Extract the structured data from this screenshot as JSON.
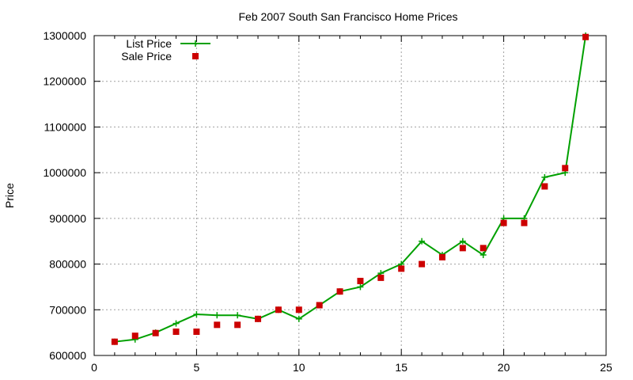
{
  "chart_data": {
    "type": "line",
    "title": "Feb 2007 South San Francisco Home Prices",
    "xlabel": "",
    "ylabel": "Price",
    "xlim": [
      0,
      25
    ],
    "ylim": [
      600000,
      1300000
    ],
    "xticks": [
      0,
      5,
      10,
      15,
      20,
      25
    ],
    "yticks": [
      600000,
      700000,
      800000,
      900000,
      1000000,
      1100000,
      1200000,
      1300000
    ],
    "xtick_labels": [
      "0",
      "5",
      "10",
      "15",
      "20",
      "25"
    ],
    "ytick_labels": [
      "600000",
      "700000",
      "800000",
      "900000",
      "1000000",
      "1100000",
      "1200000",
      "1300000"
    ],
    "grid": true,
    "legend_position": "top-left",
    "series": [
      {
        "name": "List Price",
        "style": "line-plus",
        "color": "#00a000",
        "x": [
          1,
          2,
          3,
          4,
          5,
          6,
          7,
          8,
          9,
          10,
          11,
          12,
          13,
          14,
          15,
          16,
          17,
          18,
          19,
          20,
          21,
          22,
          23,
          24
        ],
        "y": [
          630000,
          635000,
          650000,
          670000,
          690000,
          688000,
          688000,
          680000,
          700000,
          680000,
          710000,
          740000,
          750000,
          780000,
          800000,
          850000,
          820000,
          850000,
          820000,
          900000,
          900000,
          990000,
          1000000,
          1300000
        ]
      },
      {
        "name": "Sale Price",
        "style": "square",
        "color": "#cc0000",
        "x": [
          1,
          2,
          3,
          4,
          5,
          6,
          7,
          8,
          9,
          10,
          11,
          12,
          13,
          14,
          15,
          16,
          17,
          18,
          19,
          20,
          21,
          22,
          23,
          24
        ],
        "y": [
          630000,
          643000,
          649000,
          652000,
          652000,
          667000,
          667000,
          680000,
          700000,
          700000,
          710000,
          740000,
          763000,
          770000,
          790000,
          800000,
          815000,
          835000,
          835000,
          890000,
          890000,
          970000,
          1010000,
          1297000
        ]
      }
    ]
  }
}
